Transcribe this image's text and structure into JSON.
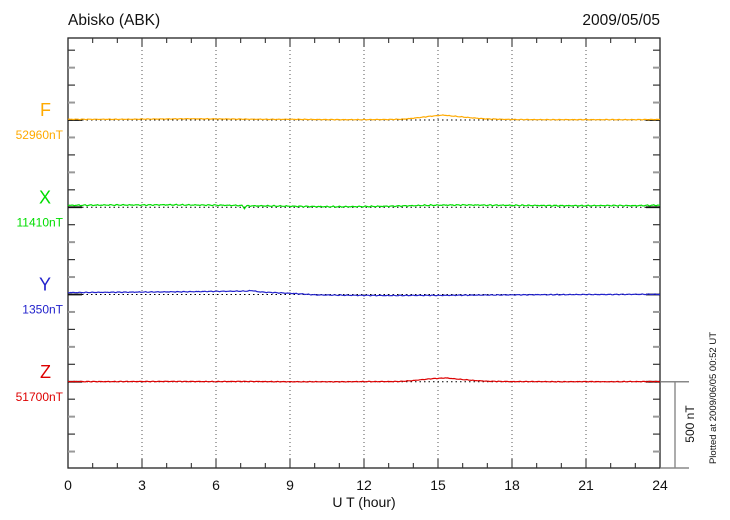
{
  "header": {
    "title": "Abisko (ABK)",
    "date": "2009/05/05"
  },
  "chart_data": {
    "type": "line",
    "title": "Abisko (ABK)",
    "date": "2009/05/05",
    "xlabel": "U T (hour)",
    "x_range": [
      0,
      24
    ],
    "x_ticks": [
      "0",
      "3",
      "6",
      "9",
      "12",
      "15",
      "18",
      "21",
      "24"
    ],
    "x_minor_tick_hours": 1,
    "grid": "vertical dotted gridlines every 3 hours; dotted horizontal baseline per trace",
    "y_axis": {
      "minor_tick_nT": 100,
      "trace_spacing_nT": 500
    },
    "scale_bar": {
      "label": "500 nT",
      "nT": 500
    },
    "plotted_at": "Plotted at 2009/06/05 00:52 UT",
    "series": [
      {
        "name": "F",
        "baseline_label": "52960nT",
        "baseline_nT": 52960,
        "color": "#FFAA00",
        "noise_nT": 2.2,
        "delta_nT": [
          [
            0,
            4
          ],
          [
            2,
            4
          ],
          [
            4,
            6
          ],
          [
            5,
            7
          ],
          [
            6,
            6
          ],
          [
            7,
            5
          ],
          [
            8,
            4
          ],
          [
            9,
            4
          ],
          [
            10,
            3
          ],
          [
            11,
            2
          ],
          [
            12,
            2
          ],
          [
            13,
            3
          ],
          [
            13.6,
            5
          ],
          [
            14,
            10
          ],
          [
            14.6,
            20
          ],
          [
            15.2,
            28
          ],
          [
            15.8,
            20
          ],
          [
            16.4,
            12
          ],
          [
            17,
            6
          ],
          [
            18,
            3
          ],
          [
            19,
            2
          ],
          [
            20,
            2
          ],
          [
            21,
            2
          ],
          [
            22,
            2
          ],
          [
            23,
            2
          ],
          [
            24,
            3
          ]
        ]
      },
      {
        "name": "X",
        "baseline_label": "11410nT",
        "baseline_nT": 11410,
        "color": "#00DD00",
        "noise_nT": 4.0,
        "delta_nT": [
          [
            0,
            11
          ],
          [
            1,
            12
          ],
          [
            2,
            13
          ],
          [
            3,
            13
          ],
          [
            4,
            14
          ],
          [
            5,
            13
          ],
          [
            6,
            12
          ],
          [
            7,
            10
          ],
          [
            7.08,
            9
          ],
          [
            7.14,
            -7
          ],
          [
            7.25,
            8
          ],
          [
            8,
            8
          ],
          [
            9,
            6
          ],
          [
            10,
            4
          ],
          [
            11,
            3
          ],
          [
            12,
            4
          ],
          [
            13,
            6
          ],
          [
            14,
            9
          ],
          [
            14.5,
            11
          ],
          [
            15,
            12
          ],
          [
            16,
            13
          ],
          [
            17,
            12
          ],
          [
            18,
            11
          ],
          [
            19,
            10
          ],
          [
            20,
            9
          ],
          [
            21,
            9
          ],
          [
            22,
            10
          ],
          [
            23,
            9
          ],
          [
            24,
            12
          ]
        ]
      },
      {
        "name": "Y",
        "baseline_label": "1350nT",
        "baseline_nT": 1350,
        "color": "#2222CC",
        "noise_nT": 2.8,
        "delta_nT": [
          [
            0,
            11
          ],
          [
            1,
            12
          ],
          [
            2,
            13
          ],
          [
            3,
            14
          ],
          [
            4,
            15
          ],
          [
            5,
            16
          ],
          [
            6,
            18
          ],
          [
            7,
            19
          ],
          [
            7.3,
            20
          ],
          [
            7.45,
            23
          ],
          [
            7.7,
            16
          ],
          [
            8,
            13
          ],
          [
            8.5,
            10
          ],
          [
            9,
            7
          ],
          [
            9.5,
            3
          ],
          [
            10,
            -2
          ],
          [
            11,
            -4
          ],
          [
            12,
            -5
          ],
          [
            13,
            -6
          ],
          [
            14,
            -5
          ],
          [
            15,
            -5
          ],
          [
            16,
            -4
          ],
          [
            17,
            -3
          ],
          [
            18,
            -2
          ],
          [
            19,
            -1
          ],
          [
            20,
            -1
          ],
          [
            21,
            0
          ],
          [
            22,
            0
          ],
          [
            23,
            1
          ],
          [
            24,
            1
          ]
        ]
      },
      {
        "name": "Z",
        "baseline_label": "51700nT",
        "baseline_nT": 51700,
        "color": "#DD0000",
        "noise_nT": 2.2,
        "delta_nT": [
          [
            0,
            1
          ],
          [
            2,
            1
          ],
          [
            4,
            2
          ],
          [
            6,
            1
          ],
          [
            7,
            2
          ],
          [
            8,
            1
          ],
          [
            9,
            0
          ],
          [
            10,
            0
          ],
          [
            11,
            0
          ],
          [
            12,
            1
          ],
          [
            13,
            1
          ],
          [
            13.5,
            2
          ],
          [
            14,
            7
          ],
          [
            14.7,
            17
          ],
          [
            15.3,
            22
          ],
          [
            15.9,
            14
          ],
          [
            16.5,
            7
          ],
          [
            17,
            3
          ],
          [
            18,
            1
          ],
          [
            19,
            1
          ],
          [
            20,
            0
          ],
          [
            21,
            1
          ],
          [
            22,
            0
          ],
          [
            23,
            1
          ],
          [
            24,
            1
          ]
        ]
      }
    ]
  }
}
